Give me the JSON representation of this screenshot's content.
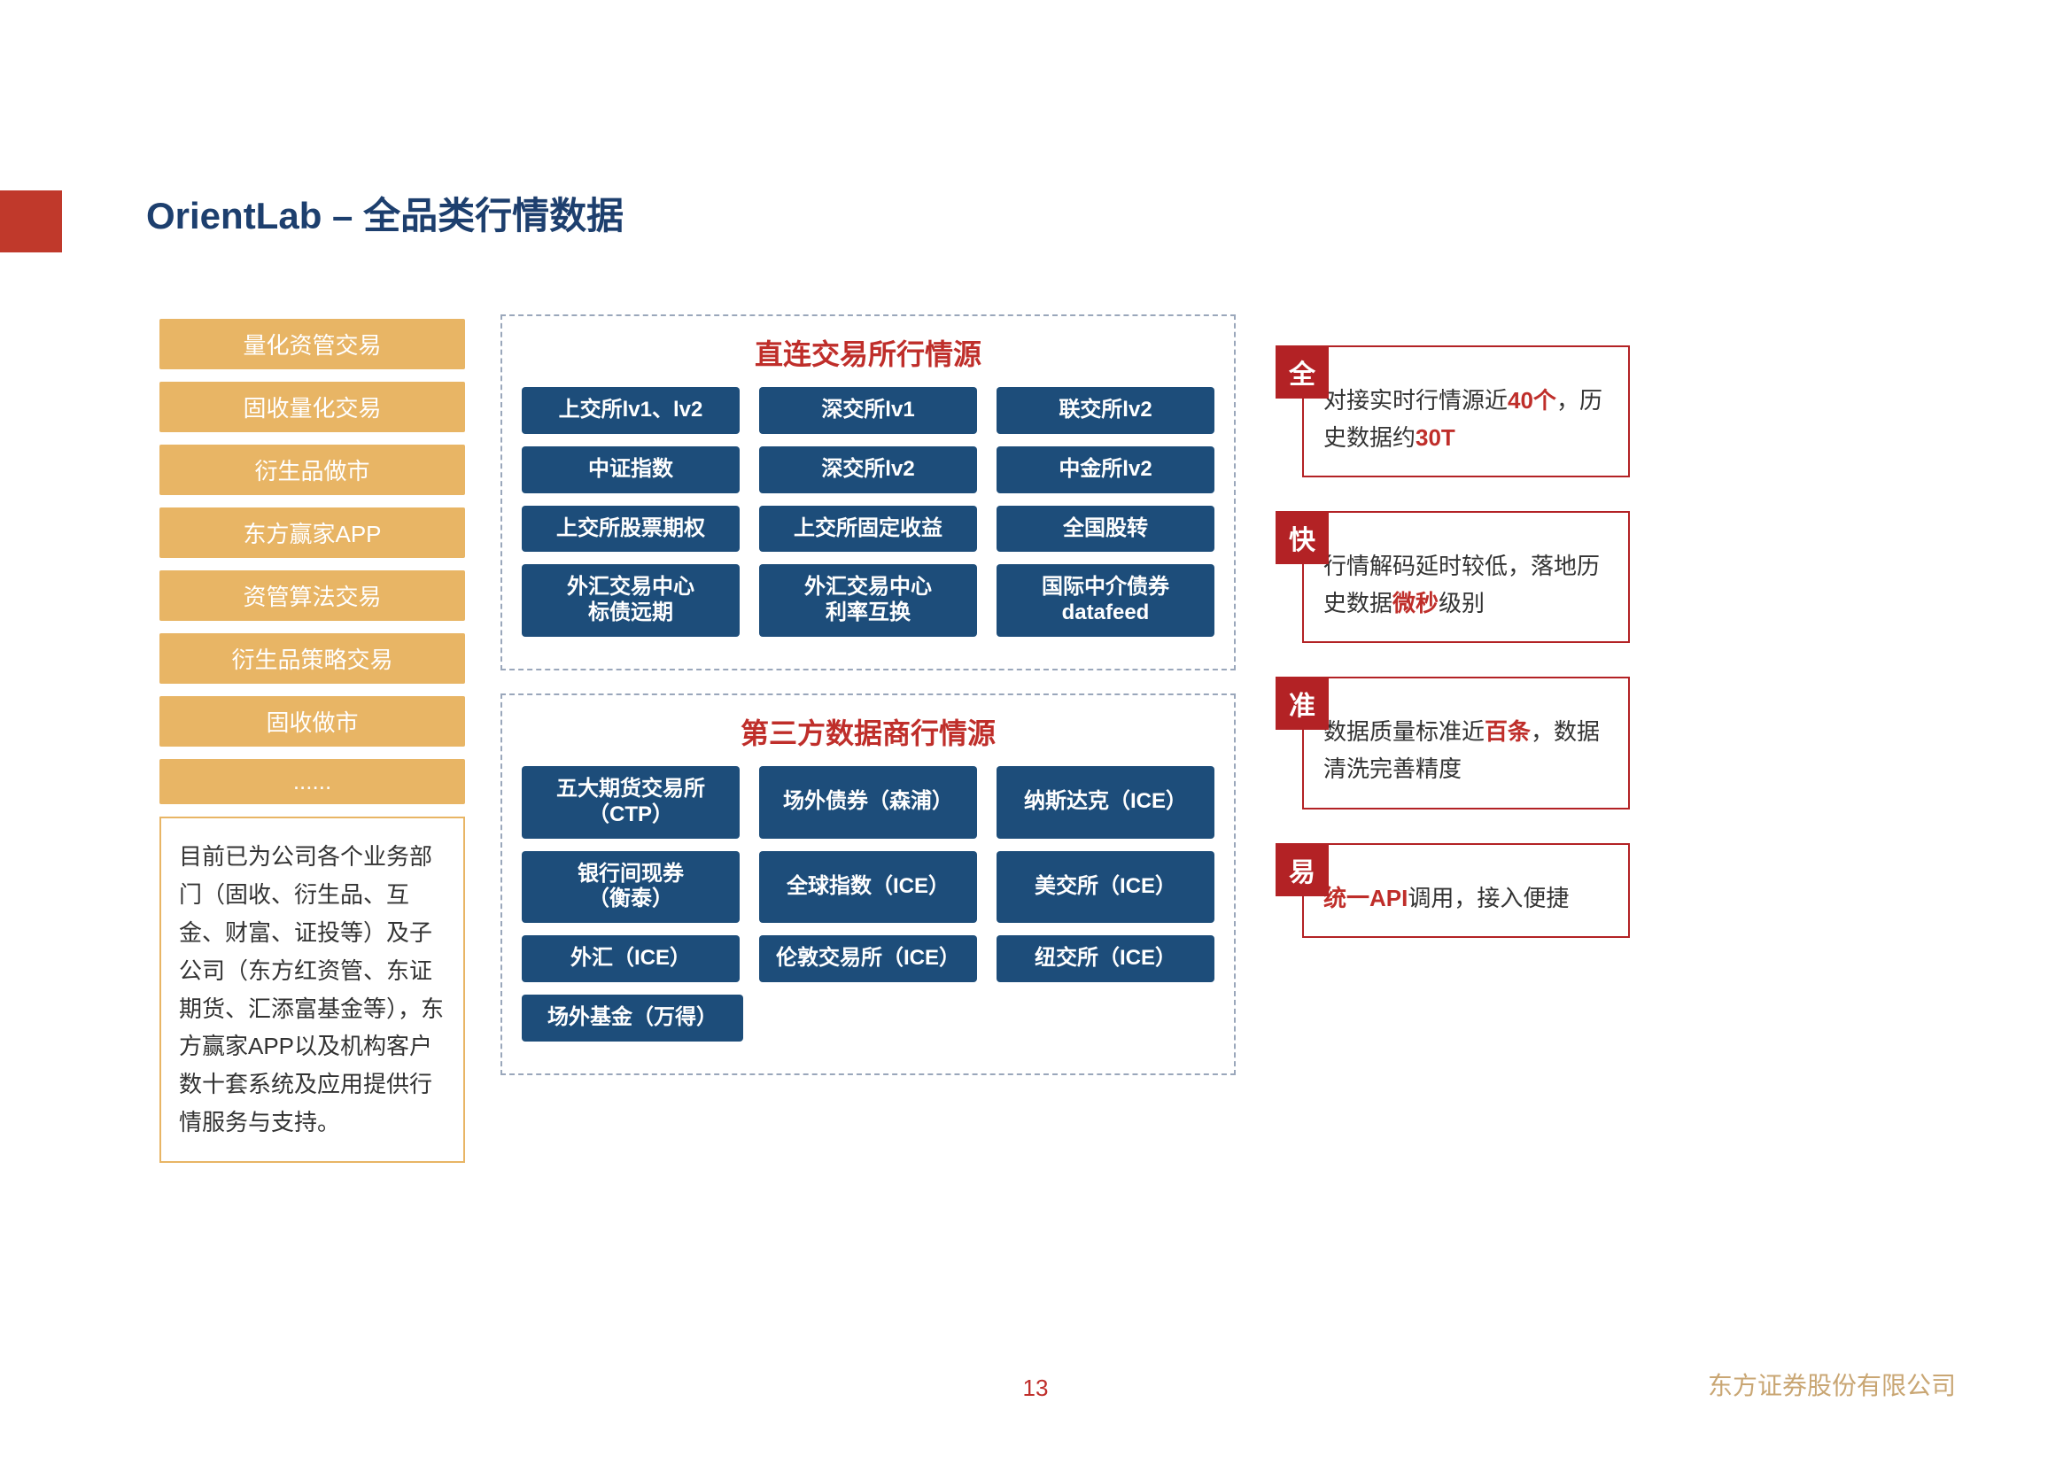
{
  "title_prefix": "OrientLab – ",
  "title_main": "全品类行情数据",
  "colors": {
    "accent_red": "#c0392b",
    "gold": "#e8b565",
    "box_blue": "#1d4d7a",
    "title_navy": "#1d3f6e",
    "badge_red": "#b32225",
    "highlight_red": "#bf2e2a",
    "footer_gold": "#c9a673"
  },
  "left": {
    "chips": [
      "量化资管交易",
      "固收量化交易",
      "衍生品做市",
      "东方赢家APP",
      "资管算法交易",
      "衍生品策略交易",
      "固收做市",
      "......"
    ],
    "description": "目前已为公司各个业务部门（固收、衍生品、互金、财富、证投等）及子公司（东方红资管、东证期货、汇添富基金等），东方赢家APP以及机构客户数十套系统及应用提供行情服务与支持。"
  },
  "center": {
    "box1": {
      "title": "直连交易所行情源",
      "rows": [
        [
          "上交所lv1、lv2",
          "深交所lv1",
          "联交所lv2"
        ],
        [
          "中证指数",
          "深交所lv2",
          "中金所lv2"
        ],
        [
          "上交所股票期权",
          "上交所固定收益",
          "全国股转"
        ],
        [
          "外汇交易中心\n标债远期",
          "外汇交易中心\n利率互换",
          "国际中介债券\ndatafeed"
        ]
      ]
    },
    "box2": {
      "title": "第三方数据商行情源",
      "rows": [
        [
          "五大期货交易所\n（CTP）",
          "场外债券（森浦）",
          "纳斯达克（ICE）"
        ],
        [
          "银行间现券\n（衡泰）",
          "全球指数（ICE）",
          "美交所（ICE）"
        ],
        [
          "外汇（ICE）",
          "伦敦交易所（ICE）",
          "纽交所（ICE）"
        ],
        [
          "场外基金（万得）"
        ]
      ]
    }
  },
  "right": [
    {
      "badge": "全",
      "pre": "对接实时行情源近",
      "hl": "40个",
      "post": "，历史数据约",
      "hl2": "30T",
      "post2": ""
    },
    {
      "badge": "快",
      "pre": "行情解码延时较低，落地历史数据",
      "hl": "微秒",
      "post": "级别"
    },
    {
      "badge": "准",
      "pre": "数据质量标准近",
      "hl": "百条",
      "post": "，数据清洗完善精度"
    },
    {
      "badge": "易",
      "pre": "",
      "hl": "统一API",
      "post": "调用，接入便捷"
    }
  ],
  "page_number": "13",
  "company": "东方证券股份有限公司"
}
